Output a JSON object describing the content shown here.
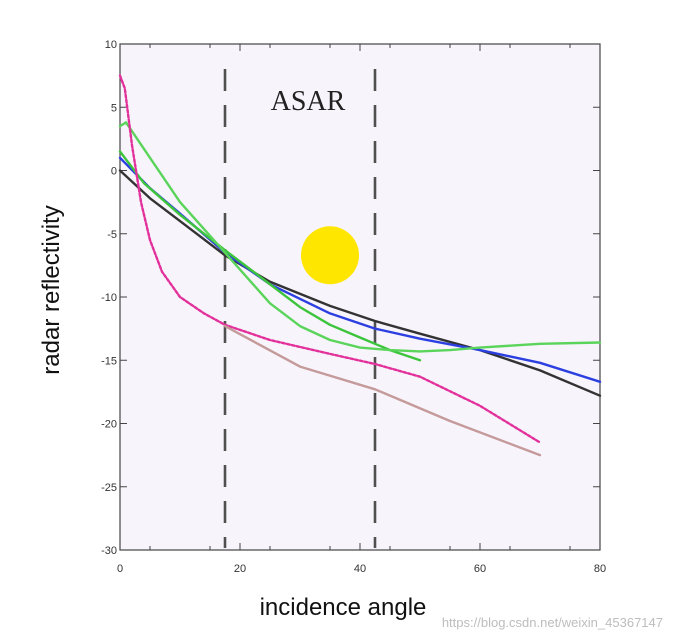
{
  "chart_data": {
    "type": "line",
    "title": "",
    "xlabel": "incidence angle",
    "ylabel": "radar reflectivity",
    "xlim": [
      0,
      80
    ],
    "ylim": [
      -30,
      10
    ],
    "xticks": [
      0,
      20,
      40,
      60,
      80
    ],
    "yticks": [
      10,
      5,
      0,
      -5,
      -10,
      -15,
      -20,
      -25,
      -30
    ],
    "grid": false,
    "legend": "none",
    "annotations": [
      {
        "text": "ASAR",
        "x": 33,
        "y": 7.7
      },
      {
        "type": "vertical-dashed-line",
        "x": 17.5
      },
      {
        "type": "vertical-dashed-line",
        "x": 42.5
      },
      {
        "type": "marker-circle",
        "x": 35,
        "y": -6.7,
        "color": "#ffe600"
      }
    ],
    "series": [
      {
        "name": "black",
        "color": "#333333",
        "dashed": false,
        "x": [
          0,
          5,
          10,
          17.5,
          25,
          35,
          42.5,
          50,
          60,
          70,
          80
        ],
        "y": [
          0,
          -2.2,
          -4,
          -6.7,
          -8.8,
          -10.7,
          -11.9,
          -12.9,
          -14.2,
          -15.8,
          -17.8
        ]
      },
      {
        "name": "blue",
        "color": "#2c3fe0",
        "dashed": false,
        "x": [
          0,
          5,
          10,
          17.5,
          25,
          35,
          42.5,
          50,
          60,
          70,
          80
        ],
        "y": [
          1,
          -1.4,
          -3.4,
          -6.5,
          -9,
          -11.3,
          -12.5,
          -13.3,
          -14.2,
          -15.2,
          -16.7
        ]
      },
      {
        "name": "green-short",
        "color": "#3cc43c",
        "dashed": false,
        "x": [
          0,
          4,
          10,
          17.5,
          25,
          30,
          35,
          40,
          45,
          50
        ],
        "y": [
          1.5,
          -1,
          -3.5,
          -6.3,
          -9,
          -10.8,
          -12.2,
          -13.2,
          -14.2,
          -15
        ]
      },
      {
        "name": "green-long",
        "color": "#5ad45a",
        "dashed": false,
        "x": [
          0,
          1,
          5,
          10,
          17.5,
          25,
          30,
          35,
          40,
          45,
          50,
          55,
          60,
          70,
          80
        ],
        "y": [
          3.5,
          3.8,
          1,
          -2.5,
          -6.5,
          -10.5,
          -12.3,
          -13.4,
          -14,
          -14.2,
          -14.3,
          -14.2,
          -14,
          -13.7,
          -13.6
        ]
      },
      {
        "name": "magenta",
        "color": "#e2319b",
        "dashed": true,
        "x": [
          0,
          0.8,
          2,
          3.5,
          5,
          7,
          10,
          14,
          17.5,
          25,
          35,
          42.5,
          50,
          60,
          70
        ],
        "y": [
          7.5,
          6.5,
          2,
          -2.5,
          -5.5,
          -8,
          -10,
          -11.3,
          -12.2,
          -13.4,
          -14.5,
          -15.3,
          -16.3,
          -18.6,
          -21.5
        ]
      },
      {
        "name": "pink-thin",
        "color": "#c49a9a",
        "dashed": false,
        "x": [
          17.5,
          30,
          42.5,
          55,
          70
        ],
        "y": [
          -12.3,
          -15.5,
          -17.3,
          -19.8,
          -22.5
        ]
      }
    ]
  }
}
